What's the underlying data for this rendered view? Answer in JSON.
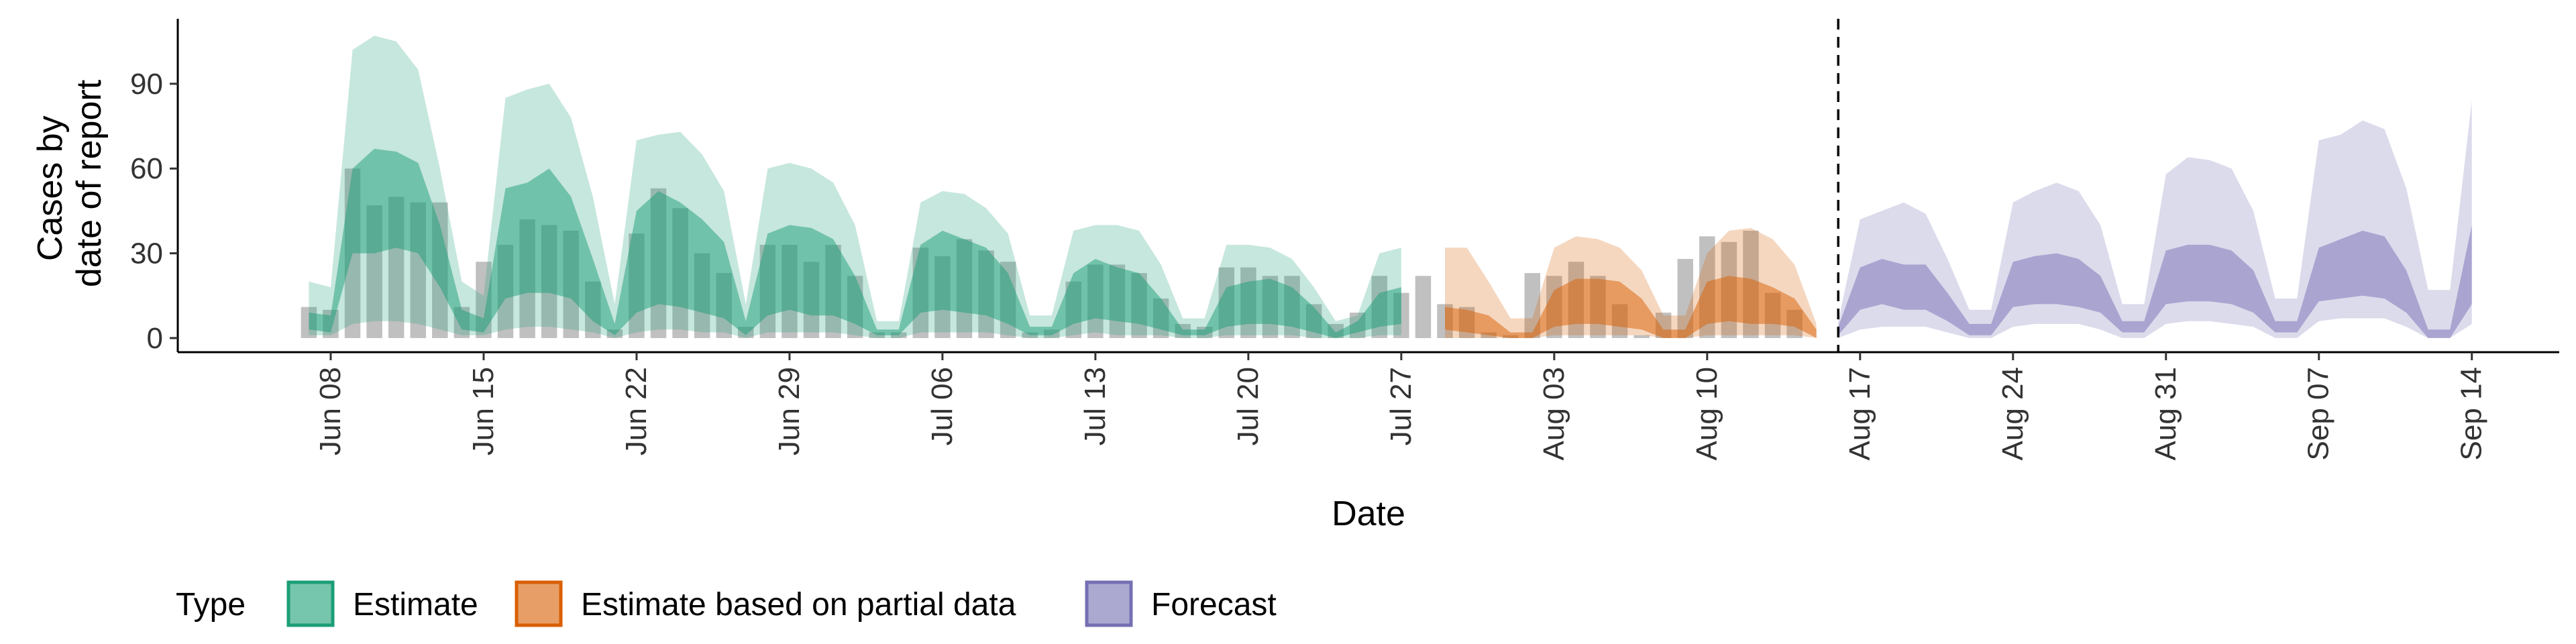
{
  "chart_data": {
    "type": "area",
    "xlabel": "Date",
    "ylabel": [
      "Cases by",
      "date of report"
    ],
    "ylim": [
      -5,
      113
    ],
    "xlim": [
      "2020-06-01",
      "2020-09-18"
    ],
    "yticks": [
      0,
      30,
      60,
      90
    ],
    "xticks": [
      {
        "date": "2020-06-08",
        "label": "Jun 08"
      },
      {
        "date": "2020-06-15",
        "label": "Jun 15"
      },
      {
        "date": "2020-06-22",
        "label": "Jun 22"
      },
      {
        "date": "2020-06-29",
        "label": "Jun 29"
      },
      {
        "date": "2020-07-06",
        "label": "Jul 06"
      },
      {
        "date": "2020-07-13",
        "label": "Jul 13"
      },
      {
        "date": "2020-07-20",
        "label": "Jul 20"
      },
      {
        "date": "2020-07-27",
        "label": "Jul 27"
      },
      {
        "date": "2020-08-03",
        "label": "Aug 03"
      },
      {
        "date": "2020-08-10",
        "label": "Aug 10"
      },
      {
        "date": "2020-08-17",
        "label": "Aug 17"
      },
      {
        "date": "2020-08-24",
        "label": "Aug 24"
      },
      {
        "date": "2020-08-31",
        "label": "Aug 31"
      },
      {
        "date": "2020-09-07",
        "label": "Sep 07"
      },
      {
        "date": "2020-09-14",
        "label": "Sep 14"
      }
    ],
    "vline_date": "2020-08-16",
    "start_date": "2020-06-07",
    "legend": {
      "title": "Type",
      "position": "bottom"
    },
    "observed": {
      "color": "#999999",
      "values": [
        11,
        10,
        60,
        47,
        50,
        48,
        48,
        11,
        27,
        33,
        42,
        40,
        38,
        20,
        3,
        37,
        53,
        46,
        30,
        23,
        4,
        33,
        33,
        27,
        33,
        22,
        2,
        2,
        32,
        29,
        35,
        31,
        27,
        2,
        3,
        20,
        26,
        26,
        23,
        14,
        5,
        4,
        25,
        25,
        22,
        22,
        12,
        5,
        9,
        22,
        16,
        22,
        12,
        11,
        2,
        1,
        23,
        22,
        27,
        22,
        12,
        1,
        9,
        28,
        36,
        34,
        38,
        16,
        10
      ]
    },
    "series": [
      {
        "name": "Estimate",
        "color": "#1b9e77",
        "day_offset": 0,
        "median": [
          5,
          4,
          15,
          22,
          24,
          25,
          20,
          10,
          3,
          16,
          18,
          19,
          16,
          10,
          2,
          21,
          26,
          23,
          18,
          14,
          2,
          17,
          18,
          15,
          15,
          10,
          2,
          2,
          14,
          17,
          15,
          13,
          10,
          2,
          2,
          11,
          14,
          12,
          10,
          6,
          2,
          2,
          10,
          11,
          10,
          8,
          5,
          1,
          5,
          9,
          10
        ],
        "inner_upper": [
          9,
          8,
          60,
          67,
          66,
          62,
          40,
          10,
          7,
          53,
          55,
          60,
          50,
          28,
          5,
          45,
          52,
          48,
          42,
          34,
          6,
          37,
          40,
          39,
          35,
          22,
          3,
          3,
          33,
          38,
          35,
          32,
          23,
          4,
          4,
          23,
          28,
          25,
          23,
          14,
          3,
          3,
          18,
          20,
          21,
          18,
          11,
          2,
          6,
          16,
          18
        ],
        "inner_lower": [
          3,
          2,
          30,
          30,
          32,
          30,
          18,
          3,
          2,
          14,
          16,
          16,
          14,
          6,
          1,
          9,
          12,
          11,
          9,
          7,
          1,
          8,
          10,
          8,
          8,
          5,
          1,
          1,
          9,
          10,
          9,
          8,
          5,
          1,
          1,
          5,
          7,
          6,
          5,
          3,
          1,
          1,
          4,
          5,
          5,
          4,
          2,
          0,
          2,
          4,
          5
        ],
        "outer_upper": [
          20,
          18,
          102,
          107,
          105,
          95,
          60,
          20,
          15,
          85,
          88,
          90,
          78,
          50,
          12,
          70,
          72,
          73,
          65,
          52,
          12,
          60,
          62,
          60,
          55,
          40,
          6,
          6,
          48,
          52,
          51,
          46,
          37,
          8,
          8,
          38,
          40,
          40,
          38,
          26,
          7,
          7,
          33,
          33,
          32,
          28,
          18,
          6,
          8,
          30,
          32
        ],
        "outer_lower": [
          1,
          1,
          5,
          6,
          6,
          5,
          3,
          1,
          1,
          3,
          4,
          4,
          3,
          2,
          0,
          2,
          3,
          3,
          2,
          2,
          0,
          2,
          2,
          2,
          2,
          1,
          0,
          0,
          2,
          2,
          2,
          2,
          1,
          0,
          0,
          1,
          2,
          1,
          1,
          1,
          0,
          0,
          1,
          1,
          1,
          1,
          0,
          0,
          0,
          1,
          1
        ]
      },
      {
        "name": "Estimate based on partial data",
        "color": "#d95f02",
        "day_offset": 52,
        "median": [
          3,
          2,
          2,
          0,
          0,
          10,
          12,
          14,
          11,
          7,
          1,
          1,
          12,
          15,
          14,
          13,
          9,
          2
        ],
        "inner_upper": [
          11,
          10,
          8,
          2,
          2,
          17,
          21,
          21,
          20,
          14,
          3,
          3,
          20,
          22,
          21,
          18,
          14,
          3
        ],
        "inner_lower": [
          3,
          2,
          1,
          0,
          0,
          4,
          5,
          5,
          4,
          3,
          0,
          0,
          5,
          6,
          5,
          5,
          4,
          0
        ],
        "outer_upper": [
          32,
          32,
          20,
          7,
          7,
          32,
          36,
          35,
          32,
          24,
          8,
          8,
          30,
          38,
          39,
          35,
          26,
          5
        ],
        "outer_lower": [
          0,
          0,
          0,
          0,
          0,
          1,
          1,
          1,
          1,
          1,
          0,
          0,
          1,
          1,
          1,
          1,
          1,
          0
        ]
      },
      {
        "name": "Forecast",
        "color": "#7570b3",
        "day_offset": 70,
        "median": [
          2,
          17,
          18,
          16,
          16,
          10,
          3,
          3,
          18,
          20,
          20,
          20,
          15,
          4,
          4,
          20,
          22,
          22,
          20,
          14,
          4,
          4,
          21,
          23,
          25,
          24,
          16,
          3,
          3,
          20
        ],
        "inner_upper": [
          4,
          25,
          28,
          26,
          26,
          16,
          5,
          5,
          27,
          29,
          30,
          28,
          22,
          6,
          6,
          31,
          33,
          33,
          31,
          24,
          6,
          6,
          32,
          35,
          38,
          36,
          24,
          3,
          3,
          40
        ],
        "inner_lower": [
          1,
          10,
          12,
          10,
          10,
          6,
          1,
          1,
          11,
          12,
          12,
          11,
          9,
          2,
          2,
          12,
          13,
          13,
          12,
          9,
          2,
          2,
          13,
          14,
          15,
          14,
          9,
          0,
          0,
          12
        ],
        "outer_upper": [
          6,
          42,
          45,
          48,
          44,
          28,
          10,
          10,
          48,
          52,
          55,
          52,
          40,
          12,
          12,
          58,
          64,
          63,
          60,
          45,
          14,
          14,
          70,
          72,
          77,
          74,
          53,
          17,
          17,
          84
        ],
        "outer_lower": [
          0,
          3,
          4,
          4,
          4,
          2,
          0,
          0,
          4,
          5,
          5,
          5,
          3,
          0,
          0,
          5,
          6,
          6,
          5,
          4,
          0,
          0,
          6,
          7,
          7,
          7,
          4,
          0,
          0,
          5
        ]
      }
    ]
  }
}
